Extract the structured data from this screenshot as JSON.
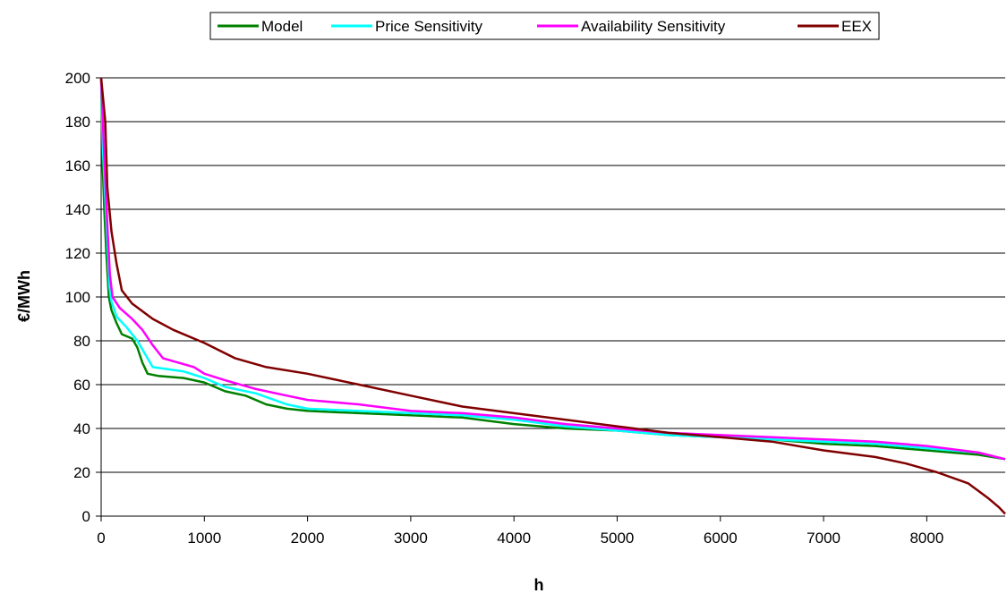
{
  "chart_data": {
    "type": "line",
    "title": "",
    "xlabel": "h",
    "ylabel": "€/MWh",
    "xlim": [
      0,
      8760
    ],
    "ylim": [
      0,
      200
    ],
    "xticks": [
      0,
      1000,
      2000,
      3000,
      4000,
      5000,
      6000,
      7000,
      8000
    ],
    "xtick_labels": [
      "0",
      "1000",
      "2000",
      "3000",
      "4000",
      "5000",
      "6000",
      "7000",
      "8000"
    ],
    "yticks": [
      0,
      20,
      40,
      60,
      80,
      100,
      120,
      140,
      160,
      180,
      200
    ],
    "ytick_labels": [
      "0",
      "20",
      "40",
      "60",
      "80",
      "100",
      "120",
      "140",
      "160",
      "180",
      "200"
    ],
    "grid": "horizontal",
    "legend_position": "top",
    "series": [
      {
        "name": "Model",
        "color": "#008000",
        "points": [
          [
            0,
            200
          ],
          [
            15,
            160
          ],
          [
            30,
            140
          ],
          [
            50,
            120
          ],
          [
            75,
            100
          ],
          [
            100,
            94
          ],
          [
            150,
            88
          ],
          [
            200,
            83
          ],
          [
            300,
            81
          ],
          [
            350,
            77
          ],
          [
            400,
            70
          ],
          [
            450,
            65
          ],
          [
            550,
            64
          ],
          [
            800,
            63
          ],
          [
            1000,
            61
          ],
          [
            1200,
            57
          ],
          [
            1400,
            55
          ],
          [
            1600,
            51
          ],
          [
            1800,
            49
          ],
          [
            2000,
            48
          ],
          [
            2500,
            47
          ],
          [
            3000,
            46
          ],
          [
            3500,
            45
          ],
          [
            4000,
            42
          ],
          [
            4500,
            40
          ],
          [
            5000,
            39
          ],
          [
            5500,
            37
          ],
          [
            6000,
            36
          ],
          [
            6500,
            35
          ],
          [
            7000,
            33
          ],
          [
            7500,
            32
          ],
          [
            8000,
            30
          ],
          [
            8500,
            28
          ],
          [
            8760,
            26
          ]
        ]
      },
      {
        "name": "Price Sensitivity",
        "color": "#00FFFF",
        "points": [
          [
            0,
            200
          ],
          [
            20,
            165
          ],
          [
            40,
            145
          ],
          [
            60,
            125
          ],
          [
            80,
            105
          ],
          [
            100,
            98
          ],
          [
            150,
            91
          ],
          [
            250,
            86
          ],
          [
            350,
            80
          ],
          [
            450,
            72
          ],
          [
            500,
            68
          ],
          [
            800,
            66
          ],
          [
            1000,
            63
          ],
          [
            1200,
            59
          ],
          [
            1500,
            56
          ],
          [
            1800,
            51
          ],
          [
            2000,
            49
          ],
          [
            2500,
            48
          ],
          [
            3000,
            47
          ],
          [
            3500,
            46
          ],
          [
            4000,
            44
          ],
          [
            4500,
            41
          ],
          [
            5000,
            39
          ],
          [
            5500,
            37
          ],
          [
            6000,
            36
          ],
          [
            6500,
            35
          ],
          [
            7000,
            34
          ],
          [
            7500,
            33
          ],
          [
            8000,
            31
          ],
          [
            8500,
            29
          ],
          [
            8760,
            26
          ]
        ]
      },
      {
        "name": "Availability Sensitivity",
        "color": "#FF00FF",
        "points": [
          [
            0,
            200
          ],
          [
            25,
            170
          ],
          [
            45,
            148
          ],
          [
            65,
            128
          ],
          [
            85,
            110
          ],
          [
            110,
            100
          ],
          [
            180,
            95
          ],
          [
            300,
            90
          ],
          [
            400,
            85
          ],
          [
            500,
            78
          ],
          [
            600,
            72
          ],
          [
            900,
            68
          ],
          [
            1000,
            65
          ],
          [
            1200,
            62
          ],
          [
            1500,
            58
          ],
          [
            1800,
            55
          ],
          [
            2000,
            53
          ],
          [
            2500,
            51
          ],
          [
            3000,
            48
          ],
          [
            3500,
            47
          ],
          [
            4000,
            45
          ],
          [
            4500,
            42
          ],
          [
            5000,
            40
          ],
          [
            5500,
            38
          ],
          [
            6000,
            37
          ],
          [
            6500,
            36
          ],
          [
            7000,
            35
          ],
          [
            7500,
            34
          ],
          [
            8000,
            32
          ],
          [
            8500,
            29
          ],
          [
            8760,
            26
          ]
        ]
      },
      {
        "name": "EEX",
        "color": "#800000",
        "points": [
          [
            0,
            200
          ],
          [
            40,
            180
          ],
          [
            60,
            150
          ],
          [
            100,
            130
          ],
          [
            150,
            115
          ],
          [
            200,
            103
          ],
          [
            300,
            97
          ],
          [
            500,
            90
          ],
          [
            700,
            85
          ],
          [
            1000,
            79
          ],
          [
            1300,
            72
          ],
          [
            1600,
            68
          ],
          [
            2000,
            65
          ],
          [
            2500,
            60
          ],
          [
            3000,
            55
          ],
          [
            3500,
            50
          ],
          [
            4000,
            47
          ],
          [
            4500,
            44
          ],
          [
            5000,
            41
          ],
          [
            5500,
            38
          ],
          [
            6000,
            36
          ],
          [
            6500,
            34
          ],
          [
            7000,
            30
          ],
          [
            7500,
            27
          ],
          [
            7800,
            24
          ],
          [
            8100,
            20
          ],
          [
            8400,
            15
          ],
          [
            8600,
            8
          ],
          [
            8700,
            4
          ],
          [
            8760,
            1
          ]
        ]
      }
    ]
  }
}
